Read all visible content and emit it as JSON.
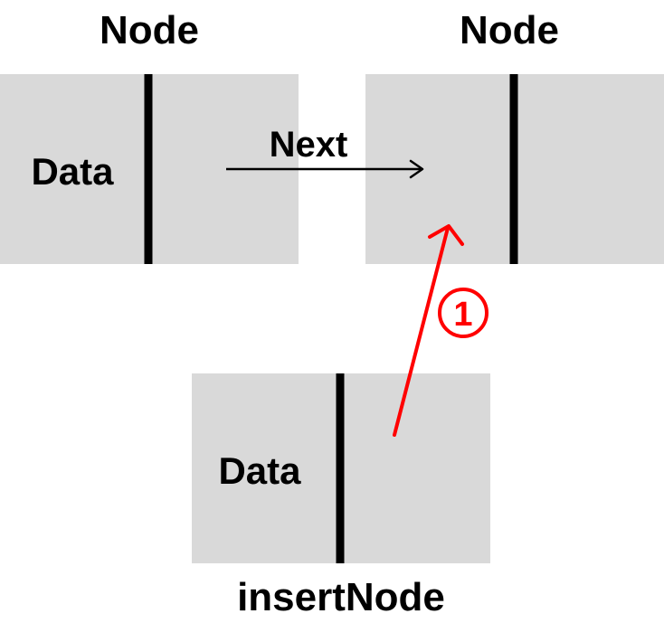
{
  "nodes": {
    "left": {
      "title": "Node",
      "data_label": "Data"
    },
    "right": {
      "title": "Node"
    },
    "insert": {
      "data_label": "Data",
      "caption": "insertNode"
    }
  },
  "arrows": {
    "next_label": "Next",
    "step_marker": "1"
  },
  "colors": {
    "box_fill": "#d9d9d9",
    "divider": "#000000",
    "text": "#000000",
    "next_arrow": "#000000",
    "step_arrow": "#ff0000"
  }
}
